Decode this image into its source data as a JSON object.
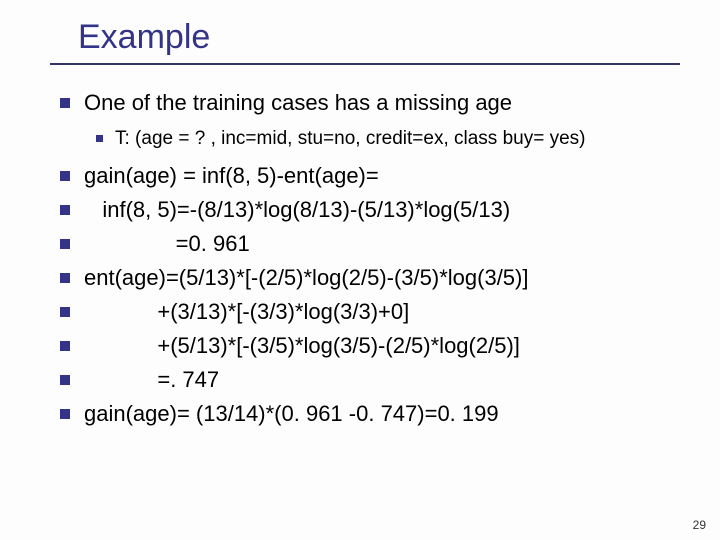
{
  "title": "Example",
  "pageNumber": "29",
  "colors": {
    "title": "#333388",
    "bullet": "#333388",
    "rule": "#333366",
    "text": "#000000",
    "background": "#fdfdfd"
  },
  "typography": {
    "title_fontsize": 34,
    "body_fontsize": 22,
    "sub_fontsize": 19,
    "pagenum_fontsize": 12,
    "font_family": "Verdana"
  },
  "lines": [
    {
      "level": 0,
      "text": "One of the training cases has a missing age"
    },
    {
      "level": 1,
      "text": "T: (age = ? , inc=mid, stu=no, credit=ex, class buy= yes)"
    },
    {
      "level": 0,
      "text": "gain(age) = inf(8, 5)-ent(age)="
    },
    {
      "level": 0,
      "text": "   inf(8, 5)=-(8/13)*log(8/13)-(5/13)*log(5/13)"
    },
    {
      "level": 0,
      "text": "               =0. 961"
    },
    {
      "level": 0,
      "text": "ent(age)=(5/13)*[-(2/5)*log(2/5)-(3/5)*log(3/5)]"
    },
    {
      "level": 0,
      "text": "            +(3/13)*[-(3/3)*log(3/3)+0]"
    },
    {
      "level": 0,
      "text": "            +(5/13)*[-(3/5)*log(3/5)-(2/5)*log(2/5)]"
    },
    {
      "level": 0,
      "text": "            =. 747"
    },
    {
      "level": 0,
      "text": "gain(age)= (13/14)*(0. 961 -0. 747)=0. 199"
    }
  ]
}
